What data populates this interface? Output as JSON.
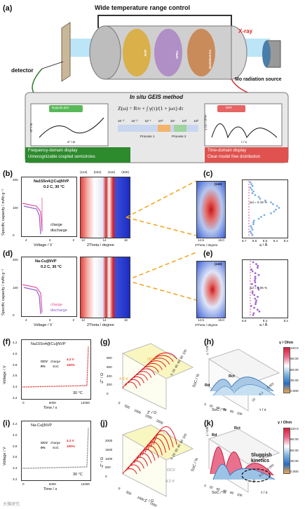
{
  "panel_a": {
    "label": "(a)",
    "top_title": "Wide temperature range control",
    "cell_layers": [
      "NVP",
      "SPEs",
      "Na15Sn4-Cu"
    ],
    "detector": "detector",
    "xray": "X-ray",
    "mo_source": "Mo radiation source",
    "method_title": "In situ GEIS method",
    "nyquist_title": "Nyquist plot",
    "nyquist_xlabel": "Z' / Ω",
    "nyquist_ylabel": "-Z'' / Ω",
    "equation": "Z(ω) = R∞ + ∫ γ(τ)/(1 + jωτ) dτ",
    "axis_ticks": [
      "10⁻³",
      "10⁻²",
      "10⁻¹",
      "10⁰",
      "10¹",
      "10²",
      "10³"
    ],
    "process_1": "Process 1",
    "process_2": "Process 2",
    "drt_title": "DRT",
    "drt_xlabel": "τ / s",
    "drt_ylabel": "γ (τ) / Ohm",
    "green_caption_1": "Frequency-domain display",
    "green_caption_2": "Unrecognizable coupled semicircles",
    "red_caption_1": "Time-domain display",
    "red_caption_2": "Clear model free distribution"
  },
  "panel_b": {
    "label": "(b)",
    "legend_title": "Na15Sn4@Cu||NVP",
    "condition": "0.2 C, 30 °C",
    "ylabel": "Specific capacity / mAh g⁻¹",
    "xlabel": "Voltage / V",
    "series": [
      "charge",
      "discharge"
    ],
    "yticks": [
      "200",
      "100",
      "0"
    ],
    "xticks": [
      "4",
      "3",
      "2"
    ]
  },
  "panel_b_heatmap": {
    "peaks": [
      "(113)",
      "(024)",
      "(116)",
      "(300)"
    ],
    "xlabel": "2Theta / degree",
    "xticks": [
      "12",
      "14",
      "16"
    ]
  },
  "panel_c": {
    "label": "(c)",
    "peak": "(116)",
    "xlabel": "2Theta / degree",
    "xticks": [
      "14.5",
      "15.0"
    ],
    "lattice_xlabel": "a / Å",
    "lattice_xticks": [
      "8.7",
      "8.6",
      "8.5",
      "8.4",
      "8.3"
    ],
    "annotation": "Δd = 0.16 %"
  },
  "panel_d": {
    "label": "(d)",
    "legend_title": "Na-Cu||NVP",
    "condition": "0.2 C, 30 °C",
    "ylabel": "Specific capacity / mAh g⁻¹",
    "xlabel": "Voltage / V",
    "series": [
      "charge",
      "discharge"
    ],
    "yticks": [
      "200",
      "100",
      "0"
    ],
    "xticks": [
      "4",
      "3",
      "2"
    ]
  },
  "panel_d_heatmap": {
    "xlabel": "2Theta / degree",
    "xticks": [
      "12",
      "14",
      "16"
    ]
  },
  "panel_e": {
    "label": "(e)",
    "peak": "(116)",
    "xlabel": "2Theta / degree",
    "xticks": [
      "14.5",
      "15.0"
    ],
    "lattice_xlabel": "a / Å",
    "lattice_xticks": [
      "8.6",
      "8.4",
      "8.2"
    ],
    "annotation": "Δd = 0.05 %"
  },
  "panel_f": {
    "label": "(f)",
    "legend": "Na15Sn4@Cu||NVP",
    "ylabel": "Voltage / V",
    "xlabel": "Time / s",
    "yticks": [
      "4.2",
      "4.0",
      "3.8",
      "3.6",
      "3.4",
      "3.2"
    ],
    "xticks": [
      "0",
      "6000",
      "12000"
    ],
    "ocv": "OCV",
    "charge": "charge",
    "v42": "4.2 V",
    "soc0": "0%",
    "soc": "SoC",
    "soc100": "100%",
    "temp": "30 °C"
  },
  "panel_g": {
    "label": "(g)",
    "ylabel": "-Z'' / Ω",
    "xlabel": "Z' / Ω",
    "zlabel": "SoC / %",
    "ocv": "OCV",
    "v42": "4.2 V",
    "yticks": [
      "800",
      "600",
      "400",
      "200",
      "0"
    ],
    "xticks": [
      "0",
      "500",
      "1000",
      "1500",
      "2000"
    ],
    "zticks": [
      "0",
      "20",
      "40",
      "60",
      "80",
      "100"
    ]
  },
  "panel_h": {
    "label": "(h)",
    "cb_title": "γ / Ohm",
    "cb_ticks": [
      "120.0",
      "90.00",
      "60.00",
      "30.00",
      "0.000"
    ],
    "rd": "Rd",
    "rct": "Rct",
    "xlabel": "SoC / %",
    "ylabel": "τ / s",
    "zlabel": "γ / Ohm",
    "xticks": [
      "0",
      "20",
      "40",
      "60",
      "80",
      "100"
    ],
    "yticks": [
      "0.001",
      "0.1",
      "10"
    ]
  },
  "panel_i": {
    "label": "(i)",
    "legend": "Na-Cu||NVP",
    "ylabel": "Voltage / V",
    "xlabel": "Time / s",
    "yticks": [
      "4.2",
      "4.0",
      "3.8",
      "3.6",
      "3.4",
      "3.2"
    ],
    "xticks": [
      "0",
      "6000",
      "12000"
    ],
    "ocv": "OCV",
    "charge": "charge",
    "v42": "4.2 V",
    "soc0": "0%",
    "soc": "SoC",
    "soc100": "100%",
    "temp": "30 °C"
  },
  "panel_j": {
    "label": "(j)",
    "ylabel": "-Z'' / Ω",
    "xlabel": "Z' / Ω",
    "zlabel": "SoC / %",
    "ocv": "OCV",
    "v42": "4.2 V",
    "yticks": [
      "2000",
      "1500",
      "1000",
      "500",
      "0"
    ],
    "xticks": [
      "0",
      "500",
      "1000",
      "1500"
    ],
    "zticks": [
      "0",
      "20",
      "40",
      "60",
      "80",
      "100"
    ]
  },
  "panel_k": {
    "label": "(k)",
    "cb_title": "γ / Ohm",
    "cb_ticks": [
      "120.0",
      "90.00",
      "60.00",
      "30.00",
      "0.000"
    ],
    "rd": "Rd",
    "rct": "Rct",
    "sluggish": "Sluggish kinetics",
    "xlabel": "SoC / %",
    "ylabel": "τ / s",
    "zlabel": "γ / Ohm",
    "xticks": [
      "0",
      "20",
      "40",
      "60",
      "80",
      "100"
    ],
    "yticks": [
      "0.001",
      "0.1",
      "10"
    ]
  },
  "watermark": "大雅研究"
}
